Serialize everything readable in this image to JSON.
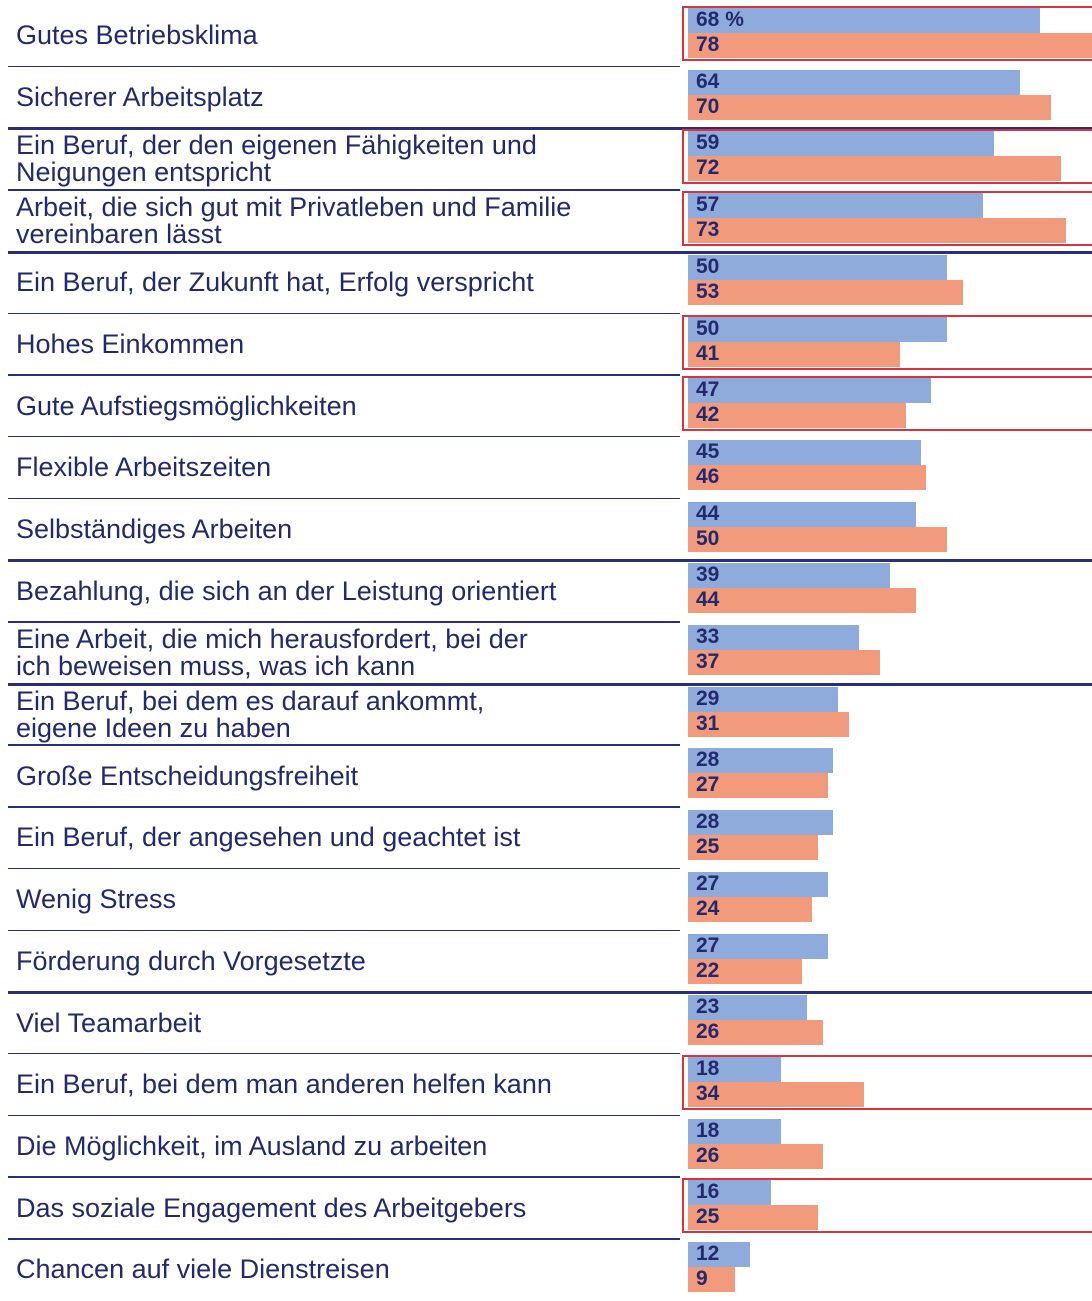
{
  "chart_data": {
    "type": "bar",
    "orientation": "horizontal",
    "categories": [
      "Gutes Betriebsklima",
      "Sicherer Arbeitsplatz",
      "Ein Beruf, der den eigenen Fähigkeiten und\nNeigungen entspricht",
      "Arbeit, die sich gut mit Privatleben und Familie\nvereinbaren lässt",
      "Ein Beruf, der Zukunft hat, Erfolg verspricht",
      "Hohes Einkommen",
      "Gute Aufstiegsmöglichkeiten",
      "Flexible Arbeitszeiten",
      "Selbständiges Arbeiten",
      "Bezahlung, die sich an der Leistung orientiert",
      "Eine Arbeit, die mich herausfordert, bei der\nich beweisen muss, was ich kann",
      "Ein Beruf, bei dem es darauf ankommt,\neigene Ideen zu haben",
      "Große Entscheidungsfreiheit",
      "Ein Beruf, der angesehen und geachtet ist",
      "Wenig Stress",
      "Förderung durch Vorgesetzte",
      "Viel Teamarbeit",
      "Ein Beruf, bei dem man anderen helfen kann",
      "Die Möglichkeit, im Ausland zu arbeiten",
      "Das soziale Engagement des Arbeitgebers",
      "Chancen auf viele Dienstreisen"
    ],
    "series": [
      {
        "color": "#8eabdc",
        "values": [
          68,
          64,
          59,
          57,
          50,
          50,
          47,
          45,
          44,
          39,
          33,
          29,
          28,
          28,
          27,
          27,
          23,
          18,
          18,
          16,
          12
        ],
        "value_labels": [
          "68 %",
          "64",
          "59",
          "57",
          "50",
          "50",
          "47",
          "45",
          "44",
          "39",
          "33",
          "29",
          "28",
          "28",
          "27",
          "27",
          "23",
          "18",
          "18",
          "16",
          "12"
        ]
      },
      {
        "color": "#f19a7c",
        "values": [
          78,
          70,
          72,
          73,
          53,
          41,
          42,
          46,
          50,
          44,
          37,
          31,
          27,
          25,
          24,
          22,
          26,
          34,
          26,
          25,
          9
        ]
      }
    ],
    "highlight": [
      true,
      false,
      true,
      true,
      false,
      true,
      true,
      false,
      false,
      false,
      false,
      false,
      false,
      false,
      false,
      false,
      false,
      true,
      false,
      true,
      false
    ]
  }
}
